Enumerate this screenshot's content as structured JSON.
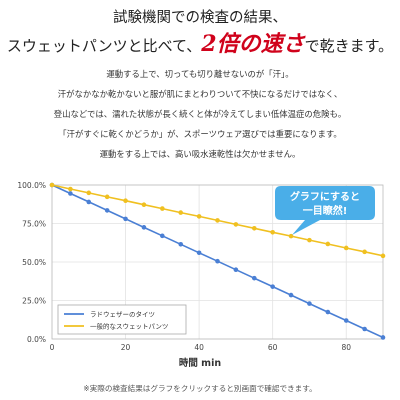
{
  "headline": {
    "line1": "試験機関での検査の結果、",
    "line2_pre": "スウェットパンツと比べて、",
    "line2_emph": "2倍の速さ",
    "line2_post": "で乾きます。"
  },
  "body_lines": [
    "運動する上で、切っても切り離せないのが「汗」。",
    "汗がなかなか乾かないと服が肌にまとわりついて不快になるだけではなく、",
    "登山などでは、濡れた状態が長く続くと体が冷えてしまい低体温症の危険も。",
    "「汗がすぐに乾くかどうか」が、スポーツウェア選びでは重要になります。",
    "運動をする上では、高い吸水速乾性は欠かせません。"
  ],
  "callout": {
    "line1": "グラフにすると",
    "line2": "一目瞭然!",
    "color": "#4aaee8"
  },
  "chart_data": {
    "type": "line",
    "xlabel": "時間 min",
    "ylabel": "",
    "xlim": [
      0,
      90
    ],
    "ylim": [
      0,
      100
    ],
    "x_ticks": [
      0,
      20,
      40,
      60,
      80
    ],
    "y_ticks": [
      0,
      25,
      50,
      75,
      100
    ],
    "y_tick_labels": [
      "0.0%",
      "25.0%",
      "50.0%",
      "75.0%",
      "100.0%"
    ],
    "grid": true,
    "legend_position": "bottom-left",
    "series": [
      {
        "name": "ラドウェザーのタイツ",
        "color": "#4a7fd4",
        "x": [
          0,
          5,
          10,
          15,
          20,
          25,
          30,
          35,
          40,
          45,
          50,
          55,
          60,
          65,
          70,
          75,
          80,
          85,
          90
        ],
        "y": [
          100,
          94.5,
          89,
          83.5,
          78,
          72.5,
          67,
          61.5,
          56,
          50.5,
          45,
          39.5,
          34,
          28.5,
          23,
          17.5,
          12,
          6.5,
          1
        ]
      },
      {
        "name": "一般的なスウェットパンツ",
        "color": "#f0c020",
        "x": [
          0,
          5,
          10,
          15,
          20,
          25,
          30,
          35,
          40,
          45,
          50,
          55,
          60,
          65,
          70,
          75,
          80,
          85,
          90
        ],
        "y": [
          100,
          97.4,
          94.9,
          92.3,
          89.8,
          87.2,
          84.7,
          82.1,
          79.6,
          77,
          74.4,
          71.9,
          69.3,
          66.8,
          64.2,
          61.7,
          59.1,
          56.6,
          54
        ]
      }
    ]
  },
  "footer_note": "※実際の検査結果はグラフをクリックすると別画面で確認できます。"
}
